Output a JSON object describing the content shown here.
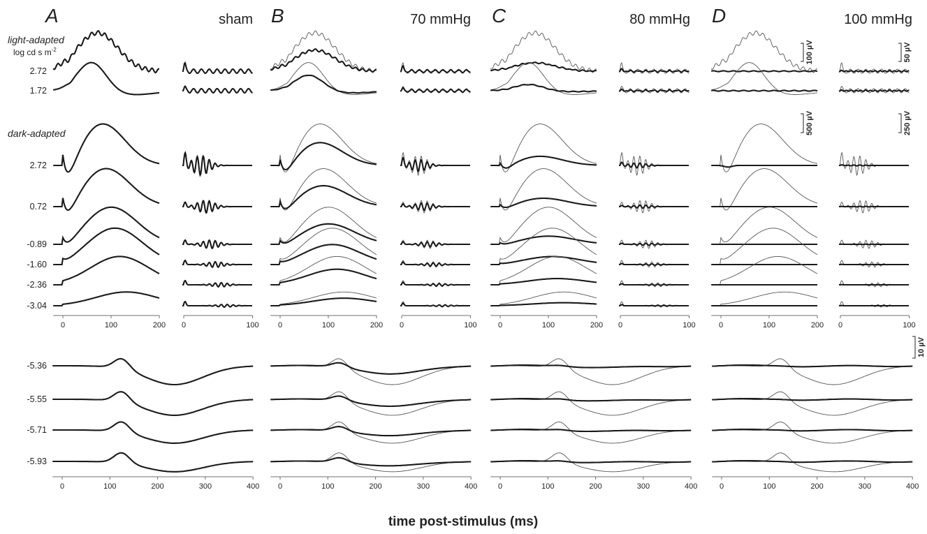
{
  "figure": {
    "xlabel": "time post-stimulus (ms)",
    "light_label": "light-adapted",
    "intensity_units": "log cd s m",
    "intensity_units_exp": "-2",
    "dark_label": "dark-adapted",
    "light_intensities": [
      "2.72",
      "1.72"
    ],
    "dark_intensities": [
      "2.72",
      "0.72",
      "-0.89",
      "-1.60",
      "-2.36",
      "-3.04"
    ],
    "scotopic_intensities": [
      "-5.36",
      "-5.55",
      "-5.71",
      "-5.93"
    ],
    "panels": [
      {
        "letter": "A",
        "condition": "sham"
      },
      {
        "letter": "B",
        "condition": "70 mmHg"
      },
      {
        "letter": "C",
        "condition": "80 mmHg"
      },
      {
        "letter": "D",
        "condition": "100 mmHg"
      }
    ],
    "scale_bars": {
      "light_wave": "100 µV",
      "light_op": "50 µV",
      "dark_wave": "500 µV",
      "dark_op": "250 µV",
      "scotopic": "10 µV"
    }
  },
  "chart_data": [
    {
      "type": "line",
      "group": "waveform",
      "x_range_ms": [
        -20,
        200
      ],
      "x_ticks": [
        0,
        100,
        200
      ],
      "description_series": [
        "control eye (thin line)",
        "treated eye (thick line)"
      ],
      "treated_amplitude_ratio": {
        "sham": 1.0,
        "70 mmHg": 0.55,
        "80 mmHg": 0.22,
        "100 mmHg": 0.0
      }
    },
    {
      "type": "line",
      "group": "oscillatory potentials",
      "x_range_ms": [
        0,
        100
      ],
      "x_ticks": [
        0,
        100
      ],
      "treated_amplitude_ratio": {
        "sham": 1.0,
        "70 mmHg": 0.6,
        "80 mmHg": 0.25,
        "100 mmHg": 0.05
      }
    },
    {
      "type": "line",
      "group": "scotopic threshold response",
      "x_range_ms": [
        -20,
        400
      ],
      "x_ticks": [
        0,
        100,
        200,
        300,
        400
      ],
      "treated_amplitude_ratio": {
        "sham": 1.0,
        "70 mmHg": 0.45,
        "80 mmHg": 0.1,
        "100 mmHg": 0.03
      }
    }
  ]
}
